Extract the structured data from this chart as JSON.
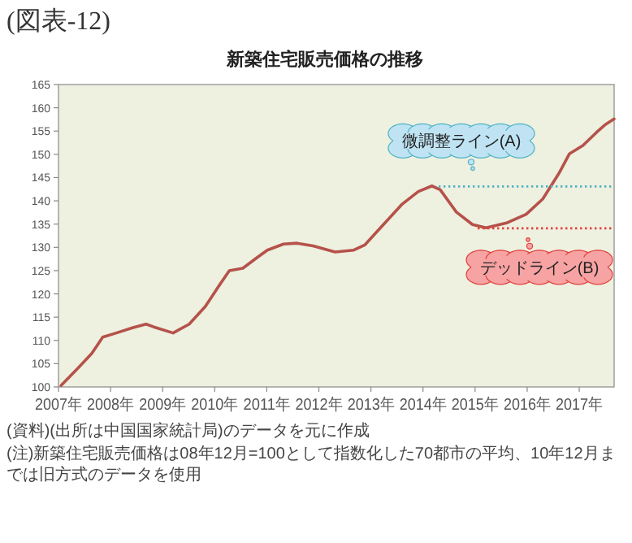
{
  "chart_data": {
    "type": "line",
    "title": "新築住宅販売価格の推移",
    "annotations": [
      "(図表-12)",
      "(資料)(出所は中国国家統計局)のデータを元に作成",
      "(注)新築住宅販売価格は08年12月=100として指数化した70都市の平均、10年12月までは旧方式のデータを使用"
    ],
    "xlim": [
      2007,
      2017.67
    ],
    "ylim": [
      100,
      165
    ],
    "xticks": [
      {
        "value": 2007,
        "label": "2007年"
      },
      {
        "value": 2008,
        "label": "2008年"
      },
      {
        "value": 2009,
        "label": "2009年"
      },
      {
        "value": 2010,
        "label": "2010年"
      },
      {
        "value": 2011,
        "label": "2011年"
      },
      {
        "value": 2012,
        "label": "2012年"
      },
      {
        "value": 2013,
        "label": "2013年"
      },
      {
        "value": 2014,
        "label": "2014年"
      },
      {
        "value": 2015,
        "label": "2015年"
      },
      {
        "value": 2016,
        "label": "2016年"
      },
      {
        "value": 2017,
        "label": "2017年"
      }
    ],
    "yticks": [
      100,
      105,
      110,
      115,
      120,
      125,
      130,
      135,
      140,
      145,
      150,
      155,
      160,
      165
    ],
    "grid": false,
    "marker": "none",
    "series": [
      {
        "color": "#b5524a",
        "line_style": "solid",
        "x": [
          2007.05,
          2007.38,
          2007.64,
          2007.85,
          2008.11,
          2008.42,
          2008.68,
          2008.83,
          2009.2,
          2009.51,
          2009.82,
          2010.08,
          2010.28,
          2010.54,
          2010.8,
          2011.01,
          2011.32,
          2011.58,
          2011.89,
          2012.31,
          2012.67,
          2012.88,
          2013.19,
          2013.6,
          2013.91,
          2014.17,
          2014.33,
          2014.64,
          2014.95,
          2015.21,
          2015.62,
          2015.98,
          2016.3,
          2016.61,
          2016.81,
          2017.07,
          2017.33,
          2017.49,
          2017.67
        ],
        "values": [
          100.3,
          104.1,
          107.2,
          110.7,
          111.6,
          112.7,
          113.5,
          112.9,
          111.6,
          113.5,
          117.3,
          121.7,
          125.0,
          125.5,
          127.7,
          129.4,
          130.7,
          130.9,
          130.3,
          129.0,
          129.4,
          130.5,
          134.3,
          139.3,
          142.0,
          143.2,
          142.4,
          137.6,
          134.9,
          134.2,
          135.3,
          137.1,
          140.4,
          145.9,
          150.1,
          151.9,
          154.7,
          156.3,
          157.6
        ]
      },
      {
        "name": "微調整ライン(A)",
        "color": "#4fb3c4",
        "line_style": "dotted",
        "x": [
          2014.3,
          2017.67
        ],
        "values": [
          143.1,
          143.1
        ]
      },
      {
        "name": "デッドライン(B)",
        "color": "#e0403a",
        "line_style": "dotted",
        "x": [
          2015.05,
          2017.67
        ],
        "values": [
          134.1,
          134.1
        ]
      }
    ]
  }
}
